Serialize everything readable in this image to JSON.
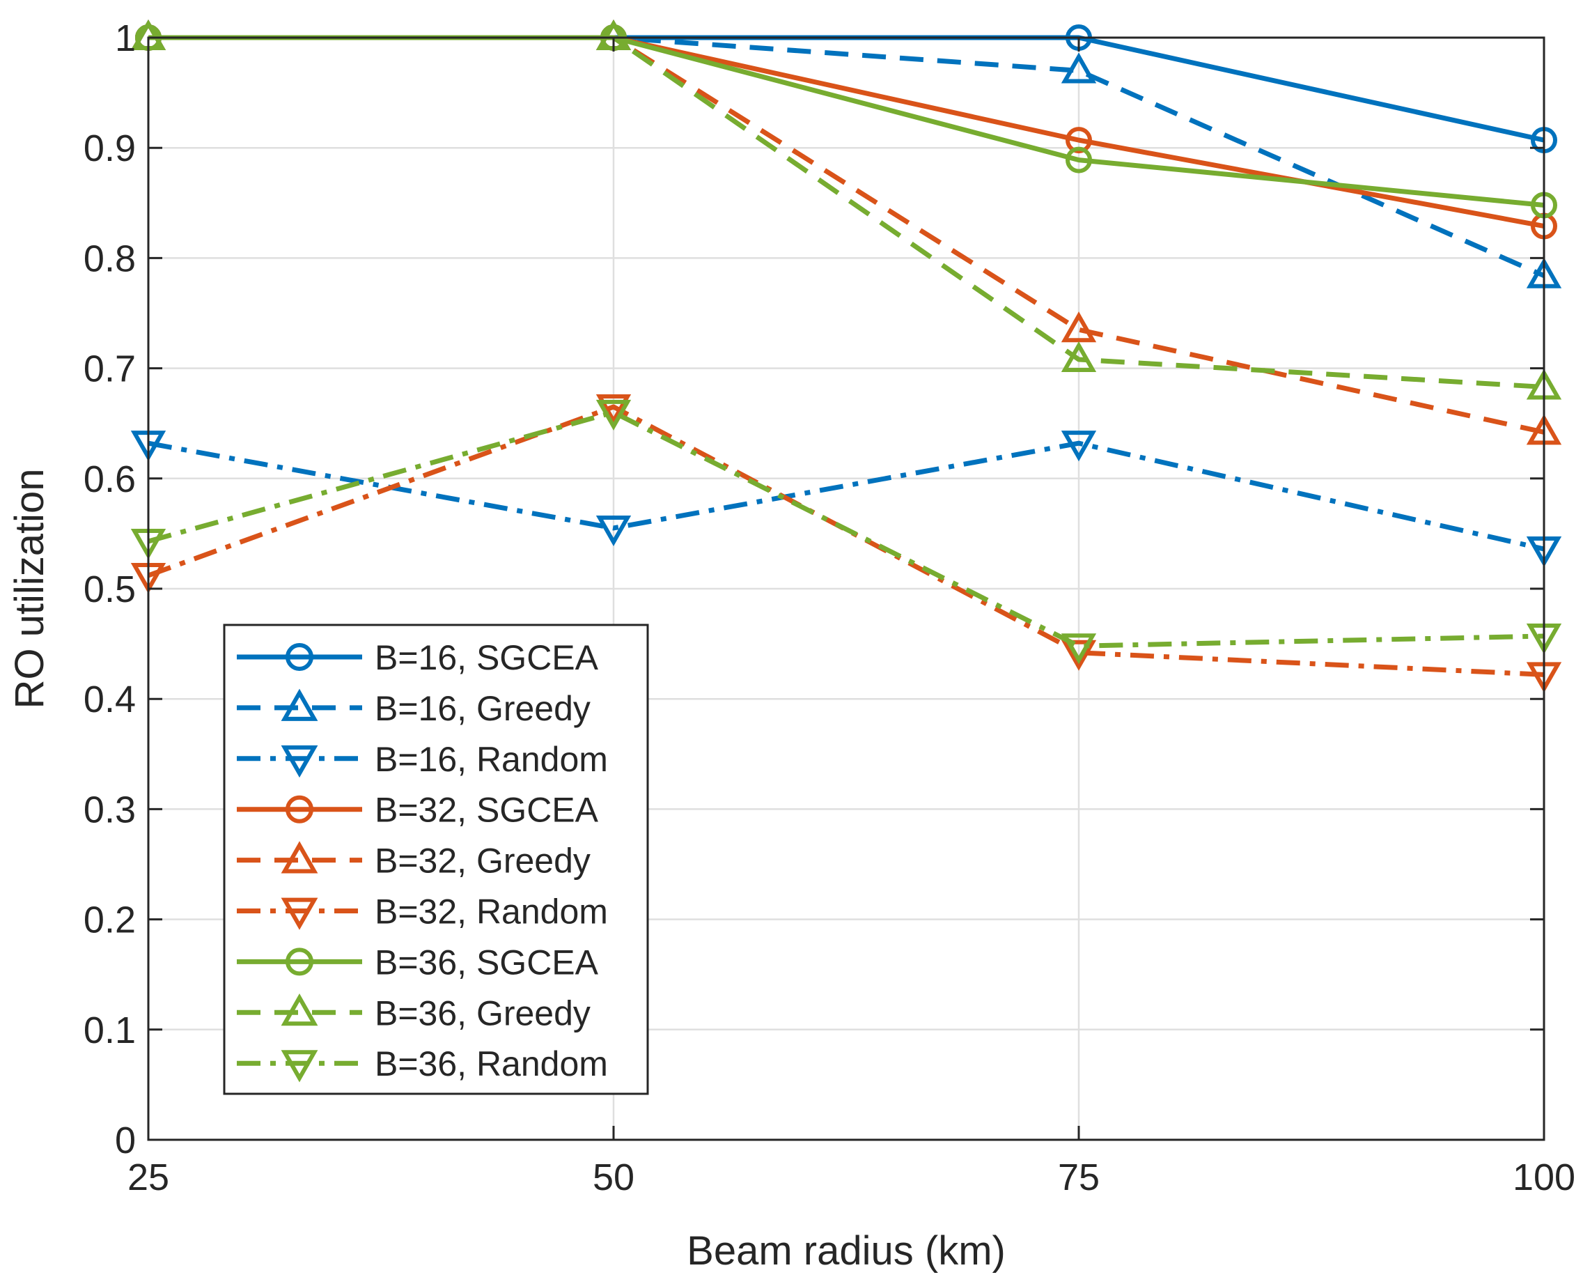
{
  "chart_data": {
    "type": "line",
    "title": "",
    "xlabel": "Beam radius (km)",
    "ylabel": "RO utilization",
    "x": [
      25,
      50,
      75,
      100
    ],
    "xticks": [
      "25",
      "50",
      "75",
      "100"
    ],
    "yticks": [
      "0",
      "0.1",
      "0.2",
      "0.3",
      "0.4",
      "0.5",
      "0.6",
      "0.7",
      "0.8",
      "0.9",
      "1"
    ],
    "xlim": [
      25,
      100
    ],
    "ylim": [
      0,
      1
    ],
    "grid": true,
    "legend_position": "lower-left",
    "series": [
      {
        "name": "B=16, SGCEA",
        "values": [
          1.0,
          1.0,
          1.0,
          0.907
        ],
        "color": "#0072BD",
        "dash": "solid",
        "marker": "circle"
      },
      {
        "name": "B=16, Greedy",
        "values": [
          1.0,
          1.0,
          0.97,
          0.784
        ],
        "color": "#0072BD",
        "dash": "dashed",
        "marker": "triangle-up"
      },
      {
        "name": "B=16, Random",
        "values": [
          0.632,
          0.555,
          0.632,
          0.536
        ],
        "color": "#0072BD",
        "dash": "dashdot",
        "marker": "triangle-down"
      },
      {
        "name": "B=32, SGCEA",
        "values": [
          1.0,
          1.0,
          0.907,
          0.829
        ],
        "color": "#D95319",
        "dash": "solid",
        "marker": "circle"
      },
      {
        "name": "B=32, Greedy",
        "values": [
          1.0,
          1.0,
          0.735,
          0.642
        ],
        "color": "#D95319",
        "dash": "dashed",
        "marker": "triangle-up"
      },
      {
        "name": "B=32, Random",
        "values": [
          0.512,
          0.665,
          0.442,
          0.422
        ],
        "color": "#D95319",
        "dash": "dashdot",
        "marker": "triangle-down"
      },
      {
        "name": "B=36, SGCEA",
        "values": [
          1.0,
          1.0,
          0.889,
          0.848
        ],
        "color": "#77AC30",
        "dash": "solid",
        "marker": "circle"
      },
      {
        "name": "B=36, Greedy",
        "values": [
          1.0,
          1.0,
          0.708,
          0.683
        ],
        "color": "#77AC30",
        "dash": "dashed",
        "marker": "triangle-up"
      },
      {
        "name": "B=36, Random",
        "values": [
          0.543,
          0.66,
          0.448,
          0.457
        ],
        "color": "#77AC30",
        "dash": "dashdot",
        "marker": "triangle-down"
      }
    ]
  }
}
